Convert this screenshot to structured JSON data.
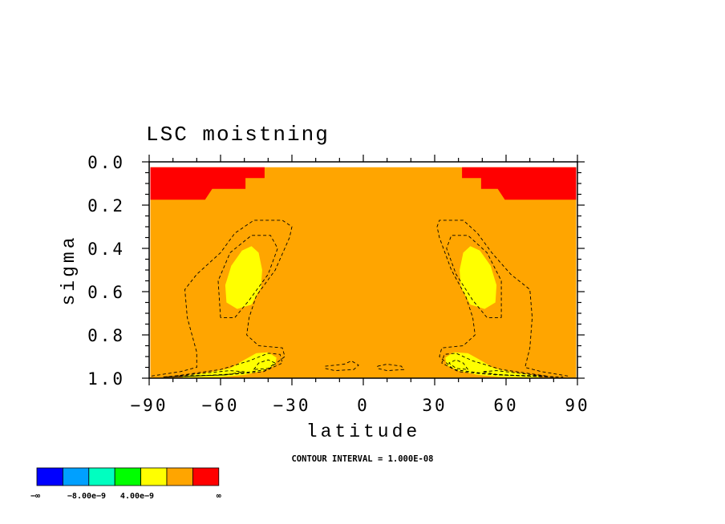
{
  "chart_data": {
    "type": "heatmap",
    "title": "LSC moistning",
    "xlabel": "latitude",
    "ylabel": "sigma",
    "xlim": [
      -90,
      90
    ],
    "ylim": [
      0.0,
      1.0
    ],
    "y_inverted": true,
    "x_ticks": [
      -90,
      -60,
      -30,
      0,
      30,
      60,
      90
    ],
    "x_tick_labels": [
      "−90",
      "−60",
      "−30",
      "0",
      "30",
      "60",
      "90"
    ],
    "y_ticks": [
      0.0,
      0.2,
      0.4,
      0.6,
      0.8,
      1.0
    ],
    "y_tick_labels": [
      "0.0",
      "0.2",
      "0.4",
      "0.6",
      "0.8",
      "1.0"
    ],
    "contour_interval_text": "CONTOUR INTERVAL = 1.000E-08",
    "colorbar": {
      "colors": [
        "#0000ff",
        "#00a0ff",
        "#00ffc0",
        "#00ff00",
        "#ffff00",
        "#ffa500",
        "#ff0000"
      ],
      "tick_labels": [
        "−∞",
        "−8.00e−9",
        "4.00e−9",
        "∞"
      ]
    },
    "regions": [
      {
        "name": "background",
        "level": "orange",
        "color": "#ffa500",
        "points": [
          [
            -89.5,
            0.025
          ],
          [
            89.5,
            0.025
          ],
          [
            89.5,
            0.998
          ],
          [
            -89.5,
            0.998
          ]
        ]
      },
      {
        "name": "top-left-red",
        "level": "red",
        "color": "#ff0000",
        "points": [
          [
            -89.5,
            0.025
          ],
          [
            -41.5,
            0.025
          ],
          [
            -41.5,
            0.075
          ],
          [
            -49.5,
            0.075
          ],
          [
            -49.5,
            0.125
          ],
          [
            -63.5,
            0.125
          ],
          [
            -66.5,
            0.175
          ],
          [
            -89.5,
            0.175
          ]
        ]
      },
      {
        "name": "top-right-red",
        "level": "red",
        "color": "#ff0000",
        "points": [
          [
            89.5,
            0.025
          ],
          [
            41.5,
            0.025
          ],
          [
            41.5,
            0.075
          ],
          [
            49.5,
            0.075
          ],
          [
            49.5,
            0.125
          ],
          [
            56.5,
            0.125
          ],
          [
            59.5,
            0.175
          ],
          [
            89.5,
            0.175
          ]
        ]
      },
      {
        "name": "left-upper-yellow",
        "level": "yellow",
        "color": "#ffff00",
        "points": [
          [
            -47,
            0.39
          ],
          [
            -44,
            0.42
          ],
          [
            -42.5,
            0.5
          ],
          [
            -43,
            0.58
          ],
          [
            -47,
            0.66
          ],
          [
            -53,
            0.68
          ],
          [
            -57.5,
            0.65
          ],
          [
            -58,
            0.57
          ],
          [
            -55.5,
            0.48
          ],
          [
            -51,
            0.41
          ]
        ]
      },
      {
        "name": "right-upper-yellow",
        "level": "yellow",
        "color": "#ffff00",
        "points": [
          [
            45,
            0.39
          ],
          [
            42,
            0.42
          ],
          [
            40.5,
            0.5
          ],
          [
            41,
            0.58
          ],
          [
            45,
            0.66
          ],
          [
            51,
            0.68
          ],
          [
            55.5,
            0.65
          ],
          [
            56,
            0.57
          ],
          [
            53.5,
            0.48
          ],
          [
            49,
            0.41
          ]
        ]
      },
      {
        "name": "left-lower-yellow",
        "level": "yellow",
        "color": "#ffff00",
        "points": [
          [
            -76,
            0.99
          ],
          [
            -66,
            0.975
          ],
          [
            -56,
            0.955
          ],
          [
            -50,
            0.915
          ],
          [
            -45,
            0.885
          ],
          [
            -40,
            0.88
          ],
          [
            -36.5,
            0.905
          ],
          [
            -37,
            0.94
          ],
          [
            -42,
            0.965
          ],
          [
            -50,
            0.985
          ],
          [
            -60,
            0.995
          ],
          [
            -76,
            0.997
          ]
        ]
      },
      {
        "name": "right-lower-yellow",
        "level": "yellow",
        "color": "#ffff00",
        "points": [
          [
            74,
            0.99
          ],
          [
            64,
            0.975
          ],
          [
            55,
            0.955
          ],
          [
            49,
            0.915
          ],
          [
            44,
            0.885
          ],
          [
            38,
            0.88
          ],
          [
            34.5,
            0.905
          ],
          [
            35,
            0.94
          ],
          [
            40,
            0.965
          ],
          [
            48,
            0.985
          ],
          [
            58,
            0.995
          ],
          [
            74,
            0.997
          ]
        ]
      }
    ],
    "contours": [
      {
        "name": "left-outer-contour",
        "points": [
          [
            -89,
            0.99
          ],
          [
            -77,
            0.97
          ],
          [
            -70,
            0.95
          ],
          [
            -70,
            0.88
          ],
          [
            -74,
            0.72
          ],
          [
            -75,
            0.59
          ],
          [
            -70,
            0.52
          ],
          [
            -60,
            0.42
          ],
          [
            -54,
            0.33
          ],
          [
            -46,
            0.27
          ],
          [
            -34,
            0.27
          ],
          [
            -30,
            0.3
          ],
          [
            -31,
            0.35
          ],
          [
            -37,
            0.5
          ],
          [
            -45,
            0.62
          ],
          [
            -48,
            0.72
          ],
          [
            -49,
            0.8
          ],
          [
            -44,
            0.85
          ],
          [
            -34,
            0.86
          ],
          [
            -33,
            0.9
          ],
          [
            -40,
            0.96
          ],
          [
            -54,
            0.98
          ],
          [
            -70,
            0.99
          ],
          [
            -84,
            0.995
          ]
        ]
      },
      {
        "name": "left-mid-contour",
        "points": [
          [
            -60,
            0.72
          ],
          [
            -61,
            0.55
          ],
          [
            -56,
            0.42
          ],
          [
            -47,
            0.34
          ],
          [
            -39,
            0.34
          ],
          [
            -36,
            0.4
          ],
          [
            -40,
            0.52
          ],
          [
            -48,
            0.64
          ],
          [
            -54,
            0.72
          ],
          [
            -60,
            0.72
          ]
        ]
      },
      {
        "name": "left-base-contour-1",
        "points": [
          [
            -79,
            0.99
          ],
          [
            -60,
            0.96
          ],
          [
            -48,
            0.92
          ],
          [
            -40,
            0.885
          ],
          [
            -35,
            0.89
          ],
          [
            -34,
            0.93
          ],
          [
            -42,
            0.97
          ],
          [
            -58,
            0.985
          ],
          [
            -79,
            0.99
          ]
        ]
      },
      {
        "name": "left-base-contour-2",
        "points": [
          [
            -46,
            0.96
          ],
          [
            -44,
            0.93
          ],
          [
            -40,
            0.915
          ],
          [
            -37,
            0.93
          ],
          [
            -40,
            0.955
          ],
          [
            -46,
            0.96
          ]
        ]
      },
      {
        "name": "left-base-contour-3",
        "points": [
          [
            -84,
            0.995
          ],
          [
            -70,
            0.98
          ],
          [
            -56,
            0.965
          ],
          [
            -50,
            0.97
          ],
          [
            -58,
            0.985
          ],
          [
            -84,
            0.995
          ]
        ]
      },
      {
        "name": "center-left-contour",
        "points": [
          [
            -16,
            0.945
          ],
          [
            -8,
            0.935
          ],
          [
            -5,
            0.92
          ],
          [
            -2,
            0.94
          ],
          [
            -4,
            0.96
          ],
          [
            -12,
            0.965
          ],
          [
            -16,
            0.955
          ],
          [
            -16,
            0.945
          ]
        ]
      },
      {
        "name": "center-right-contour",
        "points": [
          [
            6,
            0.945
          ],
          [
            10,
            0.935
          ],
          [
            16,
            0.945
          ],
          [
            17,
            0.96
          ],
          [
            10,
            0.965
          ],
          [
            6,
            0.955
          ],
          [
            6,
            0.945
          ]
        ]
      },
      {
        "name": "right-outer-contour",
        "points": [
          [
            86,
            0.99
          ],
          [
            75,
            0.97
          ],
          [
            68,
            0.95
          ],
          [
            70,
            0.86
          ],
          [
            71,
            0.72
          ],
          [
            70,
            0.59
          ],
          [
            62,
            0.52
          ],
          [
            54,
            0.42
          ],
          [
            48,
            0.33
          ],
          [
            42,
            0.27
          ],
          [
            32,
            0.27
          ],
          [
            31,
            0.3
          ],
          [
            32,
            0.35
          ],
          [
            37,
            0.5
          ],
          [
            43,
            0.62
          ],
          [
            46,
            0.72
          ],
          [
            47,
            0.8
          ],
          [
            42,
            0.85
          ],
          [
            33,
            0.86
          ],
          [
            32,
            0.9
          ],
          [
            38,
            0.96
          ],
          [
            52,
            0.98
          ],
          [
            68,
            0.99
          ],
          [
            84,
            0.995
          ]
        ]
      },
      {
        "name": "right-mid-contour",
        "points": [
          [
            58,
            0.72
          ],
          [
            58,
            0.55
          ],
          [
            52,
            0.42
          ],
          [
            44,
            0.34
          ],
          [
            37,
            0.34
          ],
          [
            35,
            0.4
          ],
          [
            39,
            0.52
          ],
          [
            46,
            0.64
          ],
          [
            52,
            0.72
          ],
          [
            58,
            0.72
          ]
        ]
      },
      {
        "name": "right-base-contour-1",
        "points": [
          [
            77,
            0.99
          ],
          [
            58,
            0.96
          ],
          [
            46,
            0.92
          ],
          [
            39,
            0.885
          ],
          [
            34,
            0.89
          ],
          [
            33,
            0.93
          ],
          [
            40,
            0.97
          ],
          [
            56,
            0.985
          ],
          [
            77,
            0.99
          ]
        ]
      },
      {
        "name": "right-base-contour-2",
        "points": [
          [
            44,
            0.96
          ],
          [
            42,
            0.93
          ],
          [
            39,
            0.915
          ],
          [
            36,
            0.93
          ],
          [
            39,
            0.955
          ],
          [
            44,
            0.96
          ]
        ]
      },
      {
        "name": "right-base-contour-3",
        "points": [
          [
            80,
            0.995
          ],
          [
            68,
            0.98
          ],
          [
            56,
            0.965
          ],
          [
            50,
            0.97
          ],
          [
            57,
            0.985
          ],
          [
            80,
            0.995
          ]
        ]
      }
    ]
  }
}
